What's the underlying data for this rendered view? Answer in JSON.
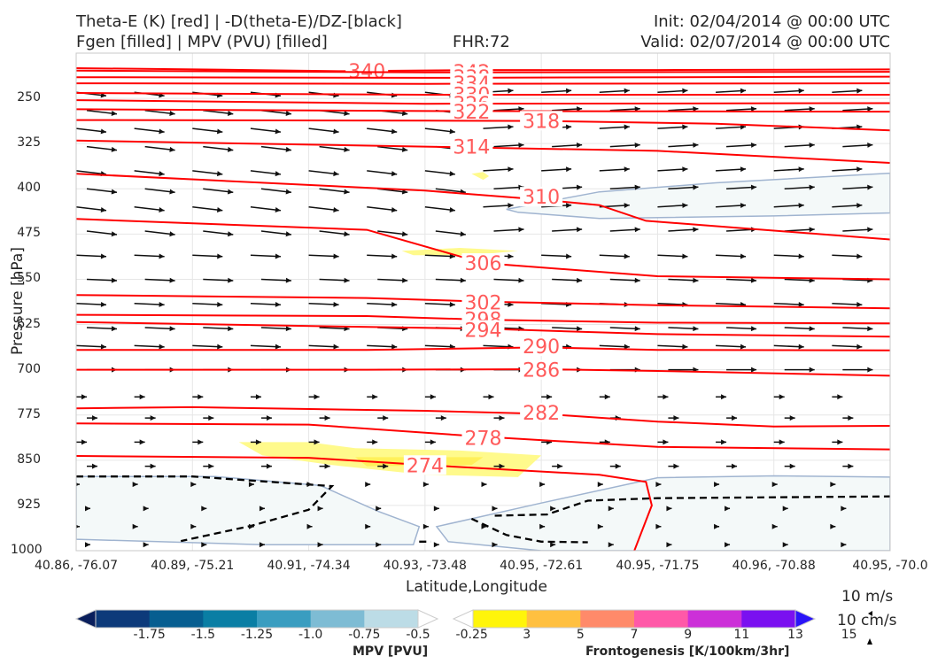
{
  "header": {
    "title_left_1": "Theta-E (K) [red] | -D(theta-E)/DZ-[black]",
    "title_left_2": "Fgen [filled] | MPV (PVU) [filled]",
    "fhr": "FHR:72",
    "init": "Init: 02/04/2014 @ 00:00 UTC",
    "valid": "Valid: 02/07/2014 @ 00:00 UTC"
  },
  "colors": {
    "theta_e": "#ff0000",
    "theta_e_label": "#ff5a5a",
    "vector": "#111111",
    "mpv_fill": "#f4f9f9",
    "mpv_edge": "#a0b4d0",
    "fgen_fill": "#fffa8c"
  },
  "chart_data": {
    "type": "cross-section",
    "xlabel": "Latitude,Longitude",
    "ylabel": "Pressure [hPa]",
    "y_scale": "linear, inverted",
    "ylim": [
      1000,
      175
    ],
    "yticks": [
      250,
      325,
      400,
      475,
      550,
      625,
      700,
      775,
      850,
      925,
      1000
    ],
    "xticks": [
      "40.86, -76.07",
      "40.89, -75.21",
      "40.91, -74.34",
      "40.93, -73.48",
      "40.95, -72.61",
      "40.95, -71.75",
      "40.96, -70.88",
      "40.95, -70.0"
    ],
    "x_count": 8,
    "grid": true,
    "theta_e_contours": [
      {
        "label": "340",
        "points": [
          [
            0,
            200
          ],
          [
            1.5,
            203
          ],
          [
            2.3,
            205
          ],
          [
            3.5,
            203
          ],
          [
            5,
            203
          ],
          [
            7,
            202
          ]
        ],
        "label_at": [
          2.5,
          204
        ]
      },
      {
        "label": "342",
        "points": [
          [
            0,
            204
          ],
          [
            3,
            207
          ],
          [
            7,
            206
          ]
        ],
        "label_at": [
          3.4,
          206
        ]
      },
      {
        "label": "338",
        "points": [
          [
            0,
            215
          ],
          [
            3,
            216
          ],
          [
            7,
            214
          ]
        ],
        "label_at": [
          3.4,
          215
        ]
      },
      {
        "label": "334",
        "points": [
          [
            0,
            225
          ],
          [
            3,
            226
          ],
          [
            7,
            225
          ]
        ],
        "label_at": [
          3.4,
          225
        ]
      },
      {
        "label": "330",
        "points": [
          [
            0,
            241
          ],
          [
            3,
            244
          ],
          [
            7,
            244
          ]
        ],
        "label_at": [
          3.4,
          243
        ]
      },
      {
        "label": "326",
        "points": [
          [
            0,
            253
          ],
          [
            3,
            259
          ],
          [
            7,
            258
          ]
        ],
        "label_at": [
          3.4,
          259
        ]
      },
      {
        "label": "322",
        "points": [
          [
            0,
            268
          ],
          [
            3,
            271
          ],
          [
            7,
            272
          ]
        ],
        "label_at": [
          3.4,
          272
        ]
      },
      {
        "label": "318",
        "points": [
          [
            0,
            286
          ],
          [
            3,
            287
          ],
          [
            4,
            287.5
          ],
          [
            5.5,
            292
          ],
          [
            7,
            303
          ]
        ],
        "label_at": [
          4.0,
          287
        ]
      },
      {
        "label": "314",
        "points": [
          [
            0,
            320
          ],
          [
            3,
            330
          ],
          [
            5,
            337
          ],
          [
            7,
            357
          ]
        ],
        "label_at": [
          3.4,
          330
        ]
      },
      {
        "label": "310",
        "points": [
          [
            0,
            375
          ],
          [
            3,
            403
          ],
          [
            4,
            418
          ],
          [
            4.5,
            427
          ],
          [
            4.9,
            453
          ],
          [
            7,
            484
          ]
        ],
        "label_at": [
          4.0,
          413
        ]
      },
      {
        "label": "306",
        "points": [
          [
            0,
            450
          ],
          [
            2.5,
            468
          ],
          [
            3.5,
            523
          ],
          [
            5,
            545
          ],
          [
            7,
            550
          ]
        ],
        "label_at": [
          3.5,
          523
        ]
      },
      {
        "label": "302",
        "points": [
          [
            0,
            576
          ],
          [
            2.5,
            581
          ],
          [
            3.5,
            587
          ],
          [
            5,
            593
          ],
          [
            7,
            598
          ]
        ],
        "label_at": [
          3.5,
          588
        ]
      },
      {
        "label": "298",
        "points": [
          [
            0,
            609
          ],
          [
            2.5,
            611
          ],
          [
            3.5,
            617
          ],
          [
            5,
            622
          ],
          [
            7,
            623
          ]
        ],
        "label_at": [
          3.5,
          616
        ]
      },
      {
        "label": "294",
        "points": [
          [
            0,
            621
          ],
          [
            2.5,
            629
          ],
          [
            3.5,
            632
          ],
          [
            5,
            641
          ],
          [
            7,
            645
          ]
        ],
        "label_at": [
          3.5,
          634
        ]
      },
      {
        "label": "290",
        "points": [
          [
            0,
            667
          ],
          [
            2.5,
            667
          ],
          [
            4,
            663
          ],
          [
            5,
            667
          ],
          [
            7,
            668
          ]
        ],
        "label_at": [
          4.0,
          661
        ]
      },
      {
        "label": "286",
        "points": [
          [
            0,
            700
          ],
          [
            2.5,
            700
          ],
          [
            4,
            699
          ],
          [
            5,
            702
          ],
          [
            7,
            710
          ]
        ],
        "label_at": [
          4.0,
          700
        ]
      },
      {
        "label": "282",
        "points": [
          [
            0,
            764
          ],
          [
            1,
            762
          ],
          [
            3,
            768
          ],
          [
            4,
            773
          ],
          [
            5,
            786
          ],
          [
            6,
            794
          ],
          [
            7,
            793
          ]
        ],
        "label_at": [
          4.0,
          771
        ]
      },
      {
        "label": "278",
        "points": [
          [
            0,
            789
          ],
          [
            2,
            791
          ],
          [
            3.5,
            811
          ],
          [
            5,
            828
          ],
          [
            7,
            832
          ]
        ],
        "label_at": [
          3.5,
          813
        ]
      },
      {
        "label": "274",
        "points": [
          [
            0,
            843
          ],
          [
            2,
            846
          ],
          [
            3,
            858
          ],
          [
            4.5,
            874
          ],
          [
            4.9,
            886
          ],
          [
            4.95,
            925
          ],
          [
            4.8,
            1000
          ]
        ],
        "label_at": [
          3.0,
          858
        ]
      }
    ],
    "mpv_regions_pvu": [
      {
        "level": -0.25,
        "points": [
          [
            0,
            877
          ],
          [
            1.2,
            877
          ],
          [
            2.1,
            892
          ],
          [
            2.6,
            935
          ],
          [
            2.95,
            960
          ],
          [
            2.9,
            990
          ],
          [
            1.6,
            990
          ],
          [
            0,
            981
          ]
        ]
      },
      {
        "level": -0.25,
        "points": [
          [
            3.1,
            960
          ],
          [
            4.0,
            921
          ],
          [
            5.0,
            879
          ],
          [
            6.0,
            876
          ],
          [
            7,
            878
          ],
          [
            7,
            1000
          ],
          [
            4.0,
            1000
          ],
          [
            3.2,
            985
          ]
        ]
      },
      {
        "level": -0.25,
        "points": [
          [
            3.7,
            434
          ],
          [
            4.5,
            405
          ],
          [
            5.5,
            390
          ],
          [
            7,
            374
          ],
          [
            7,
            440
          ],
          [
            6,
            445
          ],
          [
            4.5,
            449
          ],
          [
            3.8,
            439
          ]
        ]
      }
    ],
    "fgen_regions": [
      {
        "level": 3,
        "points": [
          [
            1.4,
            820
          ],
          [
            2.0,
            820
          ],
          [
            2.4,
            830
          ],
          [
            3.3,
            834
          ],
          [
            4.0,
            842
          ],
          [
            3.8,
            878
          ],
          [
            3.0,
            874
          ],
          [
            2.2,
            858
          ],
          [
            1.6,
            842
          ]
        ]
      },
      {
        "level": 5,
        "points": [
          [
            2.4,
            845
          ],
          [
            3.5,
            845
          ],
          [
            3.4,
            858
          ],
          [
            2.5,
            860
          ]
        ]
      },
      {
        "level": 3,
        "points": [
          [
            2.8,
            503
          ],
          [
            3.3,
            498
          ],
          [
            3.8,
            503
          ],
          [
            3.4,
            510
          ],
          [
            2.9,
            510
          ]
        ]
      },
      {
        "level": 3,
        "points": [
          [
            3.4,
            375
          ],
          [
            3.5,
            372
          ],
          [
            3.55,
            379
          ],
          [
            3.5,
            385
          ]
        ]
      }
    ],
    "stability_contours_dashed": [
      {
        "points": [
          [
            0,
            877
          ],
          [
            1.0,
            877
          ],
          [
            2.2,
            893
          ],
          [
            2.0,
            932
          ],
          [
            1.5,
            959
          ],
          [
            0.9,
            984
          ]
        ]
      },
      {
        "points": [
          [
            3.6,
            942
          ],
          [
            4.05,
            940
          ],
          [
            4.4,
            917
          ],
          [
            5.0,
            913
          ],
          [
            7,
            910
          ]
        ]
      },
      {
        "points": [
          [
            3.4,
            947
          ],
          [
            3.7,
            974
          ],
          [
            4.0,
            985
          ],
          [
            4.4,
            986
          ]
        ]
      },
      {
        "points": [
          [
            2.95,
            985
          ],
          [
            3.05,
            985
          ]
        ]
      }
    ],
    "vector_levels": [
      240,
      270,
      300,
      330,
      370,
      400,
      430,
      470,
      510,
      550,
      590,
      630,
      660,
      700,
      745,
      780,
      820,
      860,
      890,
      930,
      960,
      990
    ],
    "vector_columns": [
      0,
      0.5,
      1,
      1.5,
      2,
      2.5,
      3,
      3.5,
      4,
      4.5,
      5,
      5.5,
      6,
      6.5,
      7
    ],
    "wind_reference": [
      "10 m/s",
      "10 cm/s"
    ],
    "colorbars": [
      {
        "title": "MPV [PVU]",
        "ticks": [
          "-1.75",
          "-1.5",
          "-1.25",
          "-1.0",
          "-0.75",
          "-0.5",
          "-0.25"
        ],
        "colors": [
          "#0a1f5c",
          "#0d3a7a",
          "#075e90",
          "#0a7ea4",
          "#3a9dc0",
          "#7ebcd4",
          "#bcdce6",
          "#ffffff"
        ]
      },
      {
        "title": "Frontogenesis [K/100km/3hr]",
        "ticks": [
          "3",
          "5",
          "7",
          "9",
          "11",
          "13",
          "15"
        ],
        "colors": [
          "#ffffff",
          "#fff50a",
          "#ffc040",
          "#ff8a6a",
          "#ff59a8",
          "#cc30d8",
          "#7a10f0",
          "#2a14f8"
        ]
      }
    ]
  }
}
